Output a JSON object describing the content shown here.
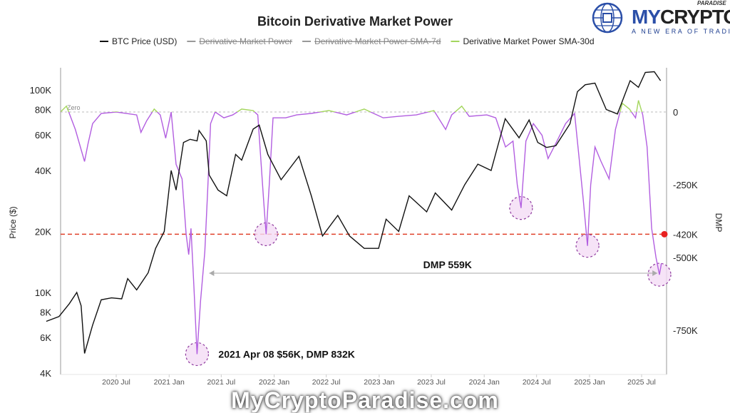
{
  "logo": {
    "brand_my": "MY",
    "brand_crypto": "CRYPTO",
    "tag": "PARADISE",
    "tagline": "A NEW ERA OF TRADING"
  },
  "watermark": "MyCryptoParadise.com",
  "chart_data": {
    "type": "line",
    "title": "Bitcoin Derivative Market Power",
    "legend": [
      {
        "name": "BTC Price (USD)",
        "color": "#111111",
        "hidden": false
      },
      {
        "name": "Derivative Market Power",
        "color": "#999999",
        "hidden": true
      },
      {
        "name": "Derivative Market Power SMA-7d",
        "color": "#999999",
        "hidden": true
      },
      {
        "name": "Derivative Market Power SMA-30d",
        "color": "#a4d65e",
        "hidden": false
      }
    ],
    "legend_position": "top",
    "ylabel_left": "Price ($)",
    "ylabel_right": "DMP",
    "left_scale": "log",
    "left_ticks": [
      "4K",
      "6K",
      "8K",
      "10K",
      "20K",
      "40K",
      "60K",
      "80K",
      "100K"
    ],
    "left_tick_values": [
      4000,
      6000,
      8000,
      10000,
      20000,
      40000,
      60000,
      80000,
      100000
    ],
    "right_ticks": [
      "0",
      "-250K",
      "-420K",
      "-500K",
      "-750K"
    ],
    "right_tick_values": [
      0,
      -250000,
      -420000,
      -500000,
      -750000
    ],
    "x_ticks": [
      "2020 Jul",
      "2021 Jan",
      "2021 Jul",
      "2022 Jan",
      "2022 Jul",
      "2023 Jan",
      "2023 Jul",
      "2024 Jan",
      "2024 Jul",
      "2025 Jan",
      "2025 Jul"
    ],
    "x_tick_dates": [
      "2020-07-01",
      "2021-01-01",
      "2021-07-01",
      "2022-01-01",
      "2022-07-01",
      "2023-01-01",
      "2023-07-01",
      "2024-01-01",
      "2024-07-01",
      "2025-01-01",
      "2025-07-01"
    ],
    "colors": {
      "price": "#111111",
      "dmp_positive": "#a4d65e",
      "dmp_negative": "#b25ee0",
      "threshold": "#e0402a",
      "zero": "#bbbbbb",
      "highlight": "#8e3a9e"
    },
    "zero_label": "Zero",
    "threshold_value": -420000,
    "price_series": [
      [
        "2019-11-01",
        7200
      ],
      [
        "2019-12-15",
        7600
      ],
      [
        "2020-01-20",
        8800
      ],
      [
        "2020-02-15",
        10000
      ],
      [
        "2020-03-01",
        8600
      ],
      [
        "2020-03-13",
        5000
      ],
      [
        "2020-04-10",
        6900
      ],
      [
        "2020-05-10",
        9200
      ],
      [
        "2020-06-15",
        9400
      ],
      [
        "2020-07-20",
        9300
      ],
      [
        "2020-08-10",
        11700
      ],
      [
        "2020-09-10",
        10300
      ],
      [
        "2020-10-20",
        12500
      ],
      [
        "2020-11-15",
        16500
      ],
      [
        "2020-12-15",
        20000
      ],
      [
        "2021-01-08",
        40000
      ],
      [
        "2021-01-25",
        32000
      ],
      [
        "2021-02-20",
        55000
      ],
      [
        "2021-03-15",
        57000
      ],
      [
        "2021-04-08",
        56000
      ],
      [
        "2021-04-15",
        63000
      ],
      [
        "2021-05-10",
        56000
      ],
      [
        "2021-05-20",
        38000
      ],
      [
        "2021-06-20",
        32000
      ],
      [
        "2021-07-20",
        30000
      ],
      [
        "2021-08-20",
        48000
      ],
      [
        "2021-09-10",
        45000
      ],
      [
        "2021-10-20",
        64000
      ],
      [
        "2021-11-10",
        67000
      ],
      [
        "2021-12-10",
        48000
      ],
      [
        "2022-01-25",
        36000
      ],
      [
        "2022-03-28",
        47000
      ],
      [
        "2022-05-10",
        30000
      ],
      [
        "2022-06-18",
        19000
      ],
      [
        "2022-08-10",
        24000
      ],
      [
        "2022-09-20",
        19000
      ],
      [
        "2022-11-10",
        16500
      ],
      [
        "2022-12-30",
        16500
      ],
      [
        "2023-01-25",
        23000
      ],
      [
        "2023-03-10",
        20000
      ],
      [
        "2023-04-15",
        30000
      ],
      [
        "2023-06-15",
        25000
      ],
      [
        "2023-07-15",
        31000
      ],
      [
        "2023-09-10",
        25500
      ],
      [
        "2023-10-25",
        34000
      ],
      [
        "2023-12-10",
        43000
      ],
      [
        "2024-01-25",
        40000
      ],
      [
        "2024-03-14",
        72000
      ],
      [
        "2024-05-01",
        58000
      ],
      [
        "2024-06-05",
        71000
      ],
      [
        "2024-07-05",
        55000
      ],
      [
        "2024-08-05",
        52000
      ],
      [
        "2024-09-06",
        53000
      ],
      [
        "2024-10-25",
        68000
      ],
      [
        "2024-11-20",
        98000
      ],
      [
        "2024-12-17",
        106000
      ],
      [
        "2025-01-20",
        108000
      ],
      [
        "2025-02-28",
        80000
      ],
      [
        "2025-04-08",
        76000
      ],
      [
        "2025-05-22",
        111000
      ],
      [
        "2025-06-20",
        103000
      ],
      [
        "2025-07-14",
        122000
      ],
      [
        "2025-08-14",
        123000
      ],
      [
        "2025-09-05",
        111000
      ]
    ],
    "dmp_series": [
      [
        "2019-11-01",
        -5000
      ],
      [
        "2019-12-10",
        -10000
      ],
      [
        "2020-01-10",
        20000
      ],
      [
        "2020-01-20",
        -5000
      ],
      [
        "2020-02-10",
        -60000
      ],
      [
        "2020-03-13",
        -170000
      ],
      [
        "2020-03-25",
        -110000
      ],
      [
        "2020-04-10",
        -40000
      ],
      [
        "2020-05-10",
        -5000
      ],
      [
        "2020-07-01",
        0
      ],
      [
        "2020-09-10",
        -10000
      ],
      [
        "2020-09-25",
        -70000
      ],
      [
        "2020-10-15",
        -30000
      ],
      [
        "2020-11-10",
        10000
      ],
      [
        "2020-12-01",
        -10000
      ],
      [
        "2020-12-20",
        -90000
      ],
      [
        "2021-01-08",
        0
      ],
      [
        "2021-01-25",
        -180000
      ],
      [
        "2021-02-15",
        -230000
      ],
      [
        "2021-03-01",
        -420000
      ],
      [
        "2021-03-10",
        -490000
      ],
      [
        "2021-03-18",
        -400000
      ],
      [
        "2021-03-28",
        -600000
      ],
      [
        "2021-04-08",
        -832000
      ],
      [
        "2021-04-20",
        -650000
      ],
      [
        "2021-05-05",
        -480000
      ],
      [
        "2021-05-15",
        -270000
      ],
      [
        "2021-05-25",
        -40000
      ],
      [
        "2021-06-10",
        0
      ],
      [
        "2021-07-10",
        -20000
      ],
      [
        "2021-08-10",
        -10000
      ],
      [
        "2021-09-10",
        10000
      ],
      [
        "2021-10-20",
        5000
      ],
      [
        "2021-11-05",
        -10000
      ],
      [
        "2021-11-25",
        -300000
      ],
      [
        "2021-12-04",
        -420000
      ],
      [
        "2021-12-15",
        -250000
      ],
      [
        "2021-12-28",
        -20000
      ],
      [
        "2022-02-10",
        -20000
      ],
      [
        "2022-03-20",
        -10000
      ],
      [
        "2022-05-10",
        -5000
      ],
      [
        "2022-07-10",
        5000
      ],
      [
        "2022-09-10",
        -10000
      ],
      [
        "2022-11-10",
        10000
      ],
      [
        "2023-01-15",
        -20000
      ],
      [
        "2023-03-10",
        -15000
      ],
      [
        "2023-05-10",
        -10000
      ],
      [
        "2023-07-10",
        5000
      ],
      [
        "2023-08-20",
        -60000
      ],
      [
        "2023-09-10",
        -10000
      ],
      [
        "2023-10-15",
        20000
      ],
      [
        "2023-11-10",
        -15000
      ],
      [
        "2024-01-10",
        -10000
      ],
      [
        "2024-02-10",
        -20000
      ],
      [
        "2024-03-15",
        -120000
      ],
      [
        "2024-04-10",
        -100000
      ],
      [
        "2024-04-25",
        -250000
      ],
      [
        "2024-05-08",
        -330000
      ],
      [
        "2024-05-25",
        -100000
      ],
      [
        "2024-06-20",
        -40000
      ],
      [
        "2024-07-20",
        -80000
      ],
      [
        "2024-08-10",
        -160000
      ],
      [
        "2024-09-10",
        -100000
      ],
      [
        "2024-10-10",
        -40000
      ],
      [
        "2024-11-10",
        -5000
      ],
      [
        "2024-11-25",
        -150000
      ],
      [
        "2024-12-10",
        -300000
      ],
      [
        "2024-12-25",
        -460000
      ],
      [
        "2025-01-05",
        -250000
      ],
      [
        "2025-01-20",
        -120000
      ],
      [
        "2025-02-10",
        -170000
      ],
      [
        "2025-03-10",
        -230000
      ],
      [
        "2025-04-01",
        -60000
      ],
      [
        "2025-04-25",
        30000
      ],
      [
        "2025-05-20",
        10000
      ],
      [
        "2025-06-10",
        -20000
      ],
      [
        "2025-06-20",
        40000
      ],
      [
        "2025-07-05",
        -10000
      ],
      [
        "2025-07-20",
        -120000
      ],
      [
        "2025-08-05",
        -400000
      ],
      [
        "2025-08-20",
        -500000
      ],
      [
        "2025-09-01",
        -559000
      ],
      [
        "2025-09-08",
        -520000
      ]
    ],
    "annotations": [
      {
        "text": "2021 Apr 08 $56K, DMP 832K",
        "date": "2021-04-08",
        "dmp": -832000
      },
      {
        "text": "DMP 559K",
        "from_date": "2021-05-20",
        "to_date": "2025-08-25",
        "dmp": -559000
      }
    ],
    "highlighted_points": [
      {
        "date": "2021-04-08",
        "dmp": -832000
      },
      {
        "date": "2021-12-04",
        "dmp": -420000
      },
      {
        "date": "2024-05-08",
        "dmp": -330000
      },
      {
        "date": "2024-12-25",
        "dmp": -460000
      },
      {
        "date": "2025-09-01",
        "dmp": -559000
      }
    ]
  }
}
